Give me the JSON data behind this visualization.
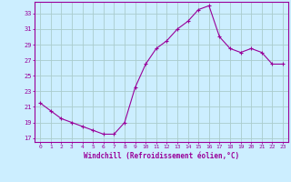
{
  "x": [
    0,
    1,
    2,
    3,
    4,
    5,
    6,
    7,
    8,
    9,
    10,
    11,
    12,
    13,
    14,
    15,
    16,
    17,
    18,
    19,
    20,
    21,
    22,
    23
  ],
  "y": [
    21.5,
    20.5,
    19.5,
    19.0,
    18.5,
    18.0,
    17.5,
    17.5,
    19.0,
    23.5,
    26.5,
    28.5,
    29.5,
    31.0,
    32.0,
    33.5,
    34.0,
    30.0,
    28.5,
    28.0,
    28.5,
    28.0,
    26.5,
    26.5
  ],
  "line_color": "#990099",
  "marker": "+",
  "bg_color": "#cceeff",
  "grid_color": "#aacccc",
  "axis_color": "#990099",
  "tick_color": "#990099",
  "xlabel": "Windchill (Refroidissement éolien,°C)",
  "ylabel_ticks": [
    17,
    19,
    21,
    23,
    25,
    27,
    29,
    31,
    33
  ],
  "ylim": [
    16.5,
    34.5
  ],
  "xlim": [
    -0.5,
    23.5
  ],
  "xticks": [
    0,
    1,
    2,
    3,
    4,
    5,
    6,
    7,
    8,
    9,
    10,
    11,
    12,
    13,
    14,
    15,
    16,
    17,
    18,
    19,
    20,
    21,
    22,
    23
  ]
}
